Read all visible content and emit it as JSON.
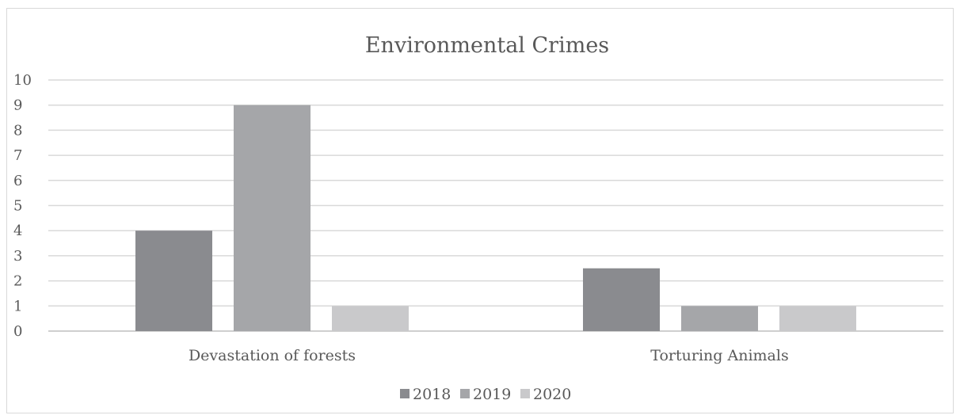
{
  "chart_data": {
    "type": "bar",
    "title": "Environmental Crimes",
    "xlabel": "",
    "ylabel": "",
    "categories": [
      "Devastation of forests",
      "Torturing Animals"
    ],
    "series": [
      {
        "name": "2018",
        "values": [
          4,
          2.5
        ],
        "color": "#8a8b8f"
      },
      {
        "name": "2019",
        "values": [
          9,
          1
        ],
        "color": "#a5a6a9"
      },
      {
        "name": "2020",
        "values": [
          1,
          1
        ],
        "color": "#c9c9cb"
      }
    ],
    "ylim": [
      0,
      10
    ],
    "yticks": [
      "0",
      "1",
      "2",
      "3",
      "4",
      "5",
      "6",
      "7",
      "8",
      "9",
      "10"
    ],
    "grid": true,
    "legend": "bottom"
  }
}
